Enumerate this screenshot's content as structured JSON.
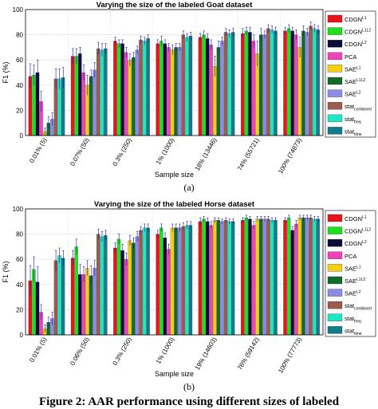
{
  "subfig_labels": [
    "(a)",
    "(b)"
  ],
  "caption": "Figure 2: AAR performance using different sizes of labeled",
  "legend": [
    {
      "base": "CDGN",
      "sup": "L1",
      "sub": "",
      "color": "#e8141c"
    },
    {
      "base": "CDGN",
      "sup": "L1L2",
      "sub": "",
      "color": "#1fe01f"
    },
    {
      "base": "CDGN",
      "sup": "L2",
      "sub": "",
      "color": "#0c0c3a"
    },
    {
      "base": "PCA",
      "sup": "",
      "sub": "",
      "color": "#ee44b8"
    },
    {
      "base": "SAE",
      "sup": "L1",
      "sub": "",
      "color": "#f3cf10"
    },
    {
      "base": "SAE",
      "sup": "L1L2",
      "sub": "",
      "color": "#136b2a"
    },
    {
      "base": "SAE",
      "sup": "L2",
      "sub": "",
      "color": "#8c8ce6"
    },
    {
      "base": "stat",
      "sup": "",
      "sub": "combined",
      "color": "#9e5a4e"
    },
    {
      "base": "stat",
      "sup": "",
      "sub": "freq",
      "color": "#1ee8c4"
    },
    {
      "base": "stat",
      "sup": "",
      "sub": "time",
      "color": "#127c8a"
    }
  ],
  "chart_data": [
    {
      "type": "bar",
      "title": "Varying the size of the labeled Goat dataset",
      "xlabel": "Sample size",
      "ylabel": "F1 (%)",
      "ylim": [
        0,
        100
      ],
      "yticks": [
        0,
        20,
        40,
        60,
        80,
        100
      ],
      "grid": true,
      "legend_position": "right",
      "categories": [
        "0.01% (5)",
        "0.07% (50)",
        "0.3% (250)",
        "1% (1000)",
        "18% (13446)",
        "74% (55721)",
        "100% (74873)"
      ],
      "series": [
        {
          "name": "CDGN L1",
          "values": [
            47,
            63,
            75,
            73,
            78,
            81,
            83
          ],
          "err": [
            10,
            6,
            3,
            3,
            3,
            4,
            3
          ]
        },
        {
          "name": "CDGN L1L2",
          "values": [
            48,
            63,
            73,
            75,
            80,
            83,
            85
          ],
          "err": [
            8,
            6,
            3,
            4,
            3,
            3,
            3
          ]
        },
        {
          "name": "CDGN L2",
          "values": [
            50,
            65,
            73,
            73,
            77,
            82,
            83
          ],
          "err": [
            10,
            5,
            3,
            3,
            4,
            4,
            3
          ]
        },
        {
          "name": "PCA",
          "values": [
            27,
            50,
            66,
            70,
            72,
            75,
            80
          ],
          "err": [
            8,
            6,
            4,
            3,
            4,
            5,
            4
          ]
        },
        {
          "name": "SAE L1",
          "values": [
            3,
            40,
            60,
            68,
            55,
            65,
            70
          ],
          "err": [
            3,
            8,
            5,
            4,
            8,
            10,
            8
          ]
        },
        {
          "name": "SAE L1L2",
          "values": [
            10,
            47,
            62,
            70,
            70,
            80,
            83
          ],
          "err": [
            5,
            5,
            4,
            3,
            5,
            5,
            4
          ]
        },
        {
          "name": "SAE L2",
          "values": [
            13,
            52,
            68,
            70,
            75,
            80,
            82
          ],
          "err": [
            5,
            6,
            3,
            3,
            3,
            3,
            3
          ]
        },
        {
          "name": "stat combined",
          "values": [
            45,
            69,
            76,
            80,
            82,
            85,
            87
          ],
          "err": [
            8,
            5,
            3,
            3,
            3,
            3,
            3
          ]
        },
        {
          "name": "stat freq",
          "values": [
            45,
            68,
            75,
            78,
            81,
            84,
            85
          ],
          "err": [
            8,
            5,
            3,
            3,
            3,
            3,
            3
          ]
        },
        {
          "name": "stat time",
          "values": [
            46,
            69,
            77,
            79,
            82,
            83,
            84
          ],
          "err": [
            8,
            4,
            3,
            3,
            3,
            3,
            3
          ]
        }
      ]
    },
    {
      "type": "bar",
      "title": "Varying the size of the labeled Horse dataset",
      "xlabel": "Sample size",
      "ylabel": "F1 (%)",
      "ylim": [
        0,
        100
      ],
      "yticks": [
        0,
        20,
        40,
        60,
        80,
        100
      ],
      "grid": true,
      "legend_position": "right",
      "categories": [
        "0.01% (5)",
        "0.06% (50)",
        "0.3% (250)",
        "1% (1000)",
        "19% (14603)",
        "76% (59142)",
        "100% (77773)"
      ],
      "series": [
        {
          "name": "CDGN L1",
          "values": [
            43,
            61,
            69,
            80,
            90,
            91,
            91
          ],
          "err": [
            12,
            6,
            4,
            3,
            3,
            2,
            2
          ]
        },
        {
          "name": "CDGN L1L2",
          "values": [
            52,
            70,
            76,
            85,
            92,
            93,
            93
          ],
          "err": [
            10,
            6,
            4,
            3,
            2,
            2,
            2
          ]
        },
        {
          "name": "CDGN L2",
          "values": [
            42,
            48,
            67,
            77,
            90,
            92,
            83
          ],
          "err": [
            12,
            8,
            5,
            4,
            3,
            2,
            3
          ]
        },
        {
          "name": "PCA",
          "values": [
            18,
            48,
            60,
            68,
            87,
            87,
            88
          ],
          "err": [
            6,
            6,
            5,
            4,
            3,
            3,
            3
          ]
        },
        {
          "name": "SAE L1",
          "values": [
            5,
            53,
            75,
            85,
            91,
            92,
            93
          ],
          "err": [
            3,
            6,
            4,
            3,
            2,
            2,
            2
          ]
        },
        {
          "name": "SAE L1L2",
          "values": [
            10,
            47,
            73,
            85,
            91,
            92,
            93
          ],
          "err": [
            4,
            8,
            4,
            3,
            2,
            2,
            2
          ]
        },
        {
          "name": "SAE L2",
          "values": [
            13,
            53,
            78,
            85,
            90,
            92,
            93
          ],
          "err": [
            5,
            6,
            4,
            3,
            2,
            2,
            2
          ]
        },
        {
          "name": "stat combined",
          "values": [
            59,
            80,
            83,
            86,
            91,
            92,
            93
          ],
          "err": [
            8,
            4,
            3,
            3,
            2,
            2,
            2
          ]
        },
        {
          "name": "stat freq",
          "values": [
            63,
            78,
            85,
            87,
            90,
            91,
            92
          ],
          "err": [
            6,
            4,
            3,
            3,
            2,
            2,
            2
          ]
        },
        {
          "name": "stat time",
          "values": [
            61,
            79,
            85,
            87,
            90,
            91,
            92
          ],
          "err": [
            6,
            4,
            3,
            3,
            2,
            2,
            2
          ]
        }
      ]
    }
  ]
}
